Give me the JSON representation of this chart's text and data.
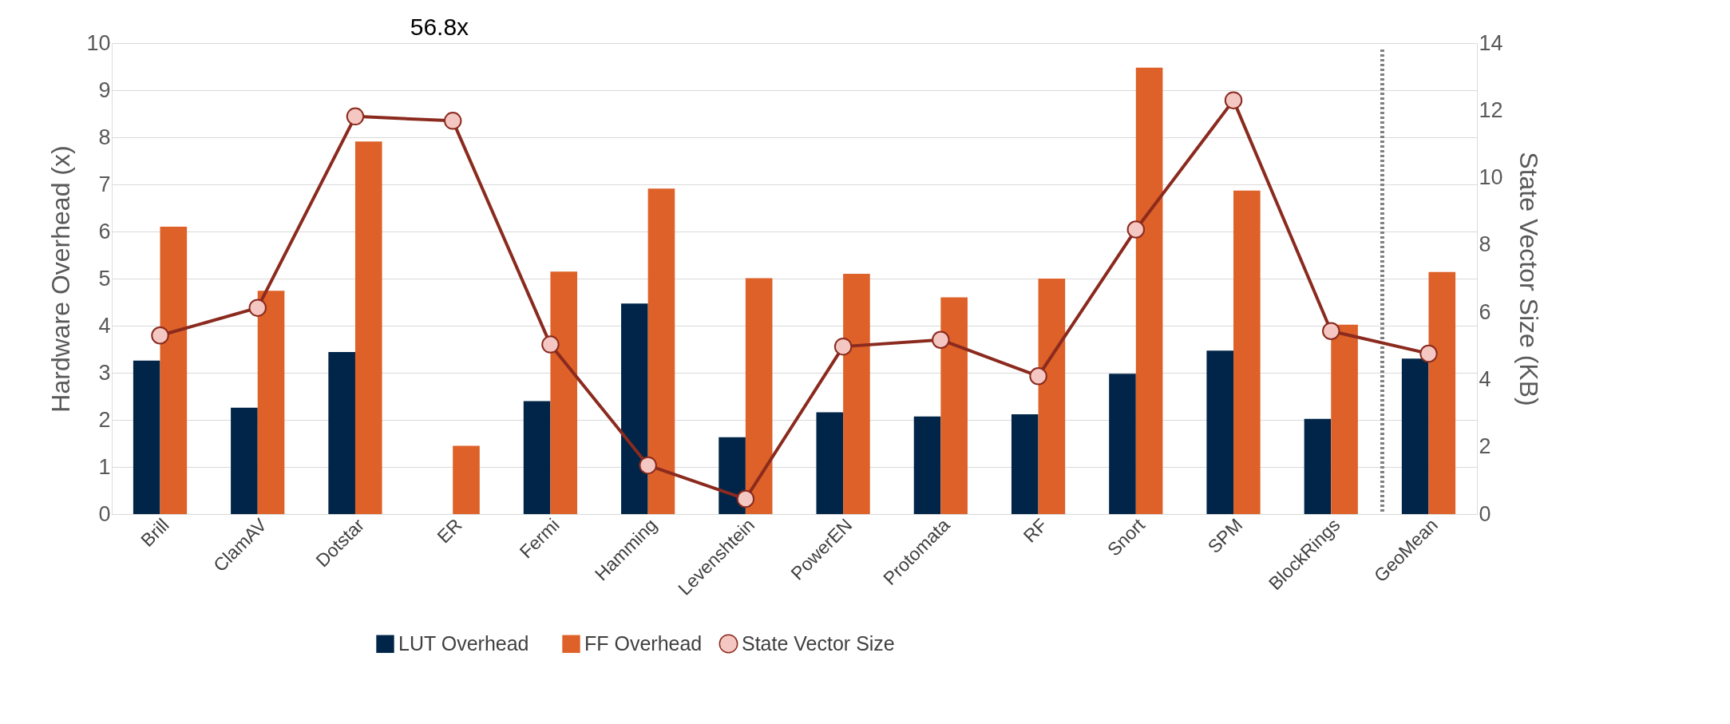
{
  "chart_data": {
    "type": "bar",
    "categories": [
      "Brill",
      "ClamAV",
      "Dotstar",
      "ER",
      "Fermi",
      "Hamming",
      "Levenshtein",
      "PowerEN",
      "Protomata",
      "RF",
      "Snort",
      "SPM",
      "BlockRings",
      "GeoMean"
    ],
    "series": [
      {
        "name": "LUT Overhead",
        "color": "#002548",
        "values": [
          3.26,
          2.26,
          3.44,
          null,
          2.4,
          4.47,
          1.63,
          2.16,
          2.07,
          2.12,
          2.98,
          3.47,
          2.02,
          3.3
        ],
        "value_labels": [
          null,
          null,
          null,
          "56.8x",
          null,
          null,
          null,
          null,
          null,
          null,
          null,
          null,
          null,
          null
        ]
      },
      {
        "name": "FF Overhead",
        "color": "#dd6128",
        "values": [
          6.1,
          4.74,
          7.91,
          1.45,
          5.15,
          6.91,
          5.01,
          5.1,
          4.6,
          5.0,
          9.48,
          6.87,
          4.02,
          5.14
        ]
      },
      {
        "name": "State Vector Size",
        "type": "line",
        "axis": "y2",
        "color": "#8b2a1e",
        "marker": "circle",
        "values": [
          5.31,
          6.13,
          11.82,
          11.69,
          5.04,
          1.45,
          0.45,
          4.98,
          5.18,
          4.1,
          8.46,
          12.3,
          5.44,
          4.77
        ]
      }
    ],
    "ylabel": "Hardware Overhead (x)",
    "y2label": "State Vector Size (KB)",
    "ylim": [
      0,
      10
    ],
    "yticks": [
      0,
      1,
      2,
      3,
      4,
      5,
      6,
      7,
      8,
      9,
      10
    ],
    "y2lim": [
      0,
      14
    ],
    "y2ticks": [
      0,
      2,
      4,
      6,
      8,
      10,
      12,
      14
    ],
    "grid": "y",
    "legend": "bottom",
    "ref_lines": [
      {
        "axis": "x",
        "value": "GeoMean",
        "color": "#808080",
        "line_style": "dotted"
      }
    ]
  }
}
